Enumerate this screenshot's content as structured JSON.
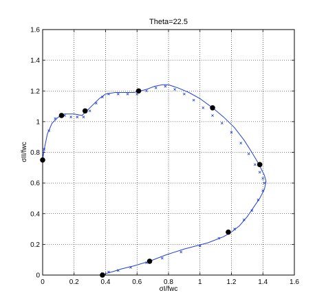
{
  "chart_data": {
    "type": "line",
    "title": "Theta=22.5",
    "xlabel": "σI/fwc",
    "ylabel": "σII/fwc",
    "xlim": [
      0,
      1.6
    ],
    "ylim": [
      0,
      1.6
    ],
    "xticks": [
      "0",
      "0.2",
      "0.4",
      "0.6",
      "0.8",
      "1",
      "1.2",
      "1.4",
      "1.6"
    ],
    "yticks": [
      "0",
      "0.2",
      "0.4",
      "0.6",
      "0.8",
      "1",
      "1.2",
      "1.4",
      "1.6"
    ],
    "grid": true,
    "colors": {
      "line": "#1f3fd6",
      "marker": "#000000",
      "cross": "#1f3fd6"
    },
    "series": [
      {
        "style": "solid-line",
        "x": [
          0.0,
          0.01,
          0.03,
          0.06,
          0.1,
          0.14,
          0.2,
          0.25,
          0.28,
          0.32,
          0.36,
          0.4,
          0.46,
          0.52,
          0.58,
          0.62,
          0.66,
          0.71,
          0.76,
          0.8,
          0.86,
          0.93,
          1.0,
          1.08,
          1.15,
          1.22,
          1.28,
          1.33,
          1.37,
          1.39,
          1.41,
          1.42,
          1.41,
          1.38,
          1.34,
          1.3,
          1.25,
          1.2,
          1.15,
          1.05,
          0.9,
          0.78,
          0.68,
          0.58,
          0.5,
          0.44,
          0.4,
          0.38
        ],
        "y": [
          0.75,
          0.82,
          0.92,
          0.99,
          1.03,
          1.05,
          1.05,
          1.04,
          1.07,
          1.11,
          1.15,
          1.18,
          1.19,
          1.19,
          1.19,
          1.2,
          1.21,
          1.23,
          1.24,
          1.24,
          1.22,
          1.19,
          1.15,
          1.09,
          1.03,
          0.96,
          0.88,
          0.8,
          0.73,
          0.69,
          0.65,
          0.61,
          0.56,
          0.5,
          0.44,
          0.38,
          0.32,
          0.28,
          0.25,
          0.21,
          0.17,
          0.13,
          0.09,
          0.06,
          0.04,
          0.02,
          0.01,
          0.0
        ]
      },
      {
        "style": "cross-markers",
        "x": [
          0.01,
          0.04,
          0.08,
          0.14,
          0.18,
          0.22,
          0.26,
          0.3,
          0.34,
          0.38,
          0.42,
          0.48,
          0.54,
          0.6,
          0.66,
          0.72,
          0.78,
          0.84,
          0.9,
          0.96,
          1.02,
          1.08,
          1.14,
          1.2,
          1.26,
          1.31,
          1.35,
          1.38,
          1.4,
          1.41,
          1.4,
          1.37,
          1.33,
          1.28,
          1.22,
          1.12,
          1.0,
          0.88,
          0.76,
          0.66,
          0.56,
          0.48,
          0.42,
          0.38
        ],
        "y": [
          0.82,
          0.94,
          1.02,
          1.04,
          1.03,
          1.03,
          1.03,
          1.07,
          1.12,
          1.16,
          1.18,
          1.18,
          1.18,
          1.18,
          1.2,
          1.22,
          1.23,
          1.21,
          1.18,
          1.14,
          1.09,
          1.04,
          0.99,
          0.93,
          0.86,
          0.79,
          0.72,
          0.67,
          0.63,
          0.6,
          0.55,
          0.49,
          0.42,
          0.36,
          0.3,
          0.24,
          0.19,
          0.15,
          0.11,
          0.08,
          0.05,
          0.03,
          0.02,
          0.01
        ]
      },
      {
        "style": "dot-markers",
        "x": [
          0.0,
          0.12,
          0.27,
          0.61,
          1.08,
          1.38,
          1.18,
          0.68,
          0.38
        ],
        "y": [
          0.75,
          1.04,
          1.07,
          1.2,
          1.09,
          0.72,
          0.28,
          0.09,
          0.0
        ]
      }
    ]
  }
}
